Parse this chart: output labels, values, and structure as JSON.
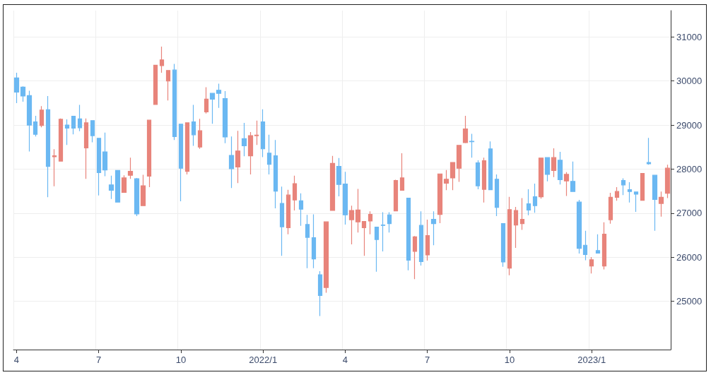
{
  "chart_data": {
    "type": "candlestick",
    "categories": [
      "4",
      null,
      null,
      null,
      null,
      null,
      null,
      null,
      null,
      null,
      null,
      null,
      null,
      "7",
      null,
      null,
      null,
      null,
      null,
      null,
      null,
      null,
      null,
      null,
      null,
      null,
      "10",
      null,
      null,
      null,
      null,
      null,
      null,
      null,
      null,
      null,
      null,
      null,
      null,
      "2022/1",
      null,
      null,
      null,
      null,
      null,
      null,
      null,
      null,
      null,
      null,
      null,
      null,
      "4",
      null,
      null,
      null,
      null,
      null,
      null,
      null,
      null,
      null,
      null,
      null,
      null,
      "7",
      null,
      null,
      null,
      null,
      null,
      null,
      null,
      null,
      null,
      null,
      null,
      null,
      "10",
      null,
      null,
      null,
      null,
      null,
      null,
      null,
      null,
      null,
      null,
      null,
      null,
      "2023/1",
      null,
      null,
      null,
      null,
      null,
      null,
      null,
      null,
      null,
      null,
      null,
      null
    ],
    "ohlc": [
      [
        30070,
        30190,
        29500,
        29750
      ],
      [
        29860,
        29880,
        29530,
        29660
      ],
      [
        29670,
        29780,
        28400,
        29000
      ],
      [
        29070,
        29210,
        28740,
        28790
      ],
      [
        28990,
        29430,
        28950,
        29340
      ],
      [
        29350,
        29660,
        27360,
        28060
      ],
      [
        28280,
        28450,
        27610,
        28300
      ],
      [
        28180,
        29150,
        28180,
        29130
      ],
      [
        29000,
        29130,
        28550,
        28930
      ],
      [
        29200,
        29210,
        28790,
        28930
      ],
      [
        29140,
        29460,
        28860,
        28940
      ],
      [
        28480,
        29150,
        27780,
        29050
      ],
      [
        29100,
        29100,
        28610,
        28760
      ],
      [
        28700,
        28710,
        27400,
        27920
      ],
      [
        28390,
        28830,
        27840,
        27980
      ],
      [
        27640,
        27850,
        27320,
        27520
      ],
      [
        27970,
        27980,
        27240,
        27250
      ],
      [
        27470,
        27860,
        27460,
        27800
      ],
      [
        27860,
        28260,
        27780,
        27950
      ],
      [
        27780,
        27800,
        26930,
        26980
      ],
      [
        27170,
        27870,
        27160,
        27620
      ],
      [
        27840,
        29120,
        27590,
        29110
      ],
      [
        29470,
        30370,
        29470,
        30360
      ],
      [
        30350,
        30780,
        30190,
        30480
      ],
      [
        30000,
        30250,
        29560,
        30240
      ],
      [
        30250,
        30390,
        28660,
        28740
      ],
      [
        29020,
        29030,
        27270,
        28020
      ],
      [
        27950,
        29060,
        27880,
        29050
      ],
      [
        29070,
        29460,
        28530,
        28780
      ],
      [
        28500,
        29140,
        28460,
        28870
      ],
      [
        29300,
        29860,
        29260,
        29590
      ],
      [
        29720,
        29730,
        29030,
        29590
      ],
      [
        29790,
        29940,
        29390,
        29720
      ],
      [
        29600,
        29770,
        28590,
        28730
      ],
      [
        28310,
        28740,
        27570,
        28010
      ],
      [
        28050,
        28870,
        27680,
        28410
      ],
      [
        28690,
        29050,
        28290,
        28530
      ],
      [
        28300,
        28840,
        27880,
        28760
      ],
      [
        28760,
        29100,
        28550,
        28770
      ],
      [
        29070,
        29360,
        28270,
        28460
      ],
      [
        28360,
        28780,
        27880,
        28110
      ],
      [
        28300,
        28660,
        27110,
        27500
      ],
      [
        27220,
        27600,
        26030,
        26690
      ],
      [
        26670,
        27530,
        26520,
        27410
      ],
      [
        27300,
        27850,
        27060,
        27670
      ],
      [
        27280,
        27450,
        26710,
        27090
      ],
      [
        26740,
        26960,
        25750,
        26450
      ],
      [
        26440,
        26970,
        25750,
        25960
      ],
      [
        25600,
        25680,
        24660,
        25130
      ],
      [
        25310,
        26810,
        25190,
        26800
      ],
      [
        27060,
        28300,
        27060,
        28130
      ],
      [
        28060,
        28250,
        27380,
        27650
      ],
      [
        27660,
        27940,
        26740,
        26960
      ],
      [
        26850,
        27170,
        26290,
        27060
      ],
      [
        26800,
        27550,
        26560,
        27070
      ],
      [
        26670,
        26820,
        26030,
        26810
      ],
      [
        26820,
        27040,
        26520,
        26970
      ],
      [
        26680,
        26690,
        25670,
        26400
      ],
      [
        26730,
        27020,
        26130,
        26720
      ],
      [
        26960,
        27020,
        26560,
        26760
      ],
      [
        27050,
        27760,
        27040,
        27740
      ],
      [
        27520,
        28360,
        27510,
        27800
      ],
      [
        27340,
        27350,
        25700,
        25930
      ],
      [
        26130,
        26480,
        25500,
        26460
      ],
      [
        26720,
        27040,
        25810,
        25900
      ],
      [
        26050,
        26850,
        25920,
        26490
      ],
      [
        26860,
        27040,
        26270,
        26760
      ],
      [
        26970,
        27900,
        26770,
        27890
      ],
      [
        27680,
        27980,
        27520,
        27770
      ],
      [
        27800,
        28160,
        27520,
        28150
      ],
      [
        28020,
        28550,
        27710,
        28540
      ],
      [
        28600,
        29210,
        28590,
        28910
      ],
      [
        28630,
        28800,
        28260,
        28620
      ],
      [
        28140,
        28200,
        27540,
        27620
      ],
      [
        27540,
        28260,
        27240,
        28190
      ],
      [
        28460,
        28630,
        27520,
        27530
      ],
      [
        27770,
        27880,
        26930,
        27130
      ],
      [
        26760,
        26770,
        25780,
        25890
      ],
      [
        25750,
        27370,
        25590,
        27080
      ],
      [
        26730,
        27140,
        26210,
        27060
      ],
      [
        26760,
        27340,
        26620,
        26860
      ],
      [
        27210,
        27540,
        26950,
        27070
      ],
      [
        27370,
        27670,
        27010,
        27170
      ],
      [
        27370,
        28260,
        27330,
        28250
      ],
      [
        28260,
        28270,
        27720,
        27880
      ],
      [
        27970,
        28470,
        27820,
        28260
      ],
      [
        28200,
        28390,
        27650,
        27760
      ],
      [
        27730,
        27930,
        27390,
        27880
      ],
      [
        27720,
        28170,
        27480,
        27490
      ],
      [
        27250,
        27300,
        26080,
        26200
      ],
      [
        26270,
        26600,
        25930,
        26060
      ],
      [
        25800,
        26000,
        25630,
        25940
      ],
      [
        26150,
        26520,
        26080,
        26090
      ],
      [
        25800,
        26790,
        25720,
        26520
      ],
      [
        26850,
        27460,
        26760,
        27360
      ],
      [
        27360,
        27590,
        27280,
        27490
      ],
      [
        27740,
        27790,
        27410,
        27640
      ],
      [
        27530,
        27700,
        27240,
        27490
      ],
      [
        27480,
        27490,
        27030,
        27430
      ],
      [
        27290,
        27910,
        27290,
        27900
      ],
      [
        28150,
        28710,
        28100,
        28120
      ],
      [
        27860,
        27870,
        26600,
        27310
      ],
      [
        27220,
        27490,
        26920,
        27360
      ],
      [
        27450,
        28100,
        27340,
        28020
      ]
    ],
    "colors": [
      "#6bb8f2",
      "#6bb8f2",
      "#6bb8f2",
      "#6bb8f2",
      "#e8847b",
      "#6bb8f2",
      "#e8847b",
      "#e8847b",
      "#6bb8f2",
      "#6bb8f2",
      "#6bb8f2",
      "#e8847b",
      "#6bb8f2",
      "#6bb8f2",
      "#6bb8f2",
      "#6bb8f2",
      "#6bb8f2",
      "#e8847b",
      "#e8847b",
      "#6bb8f2",
      "#e8847b",
      "#e8847b",
      "#e8847b",
      "#e8847b",
      "#e8847b",
      "#6bb8f2",
      "#6bb8f2",
      "#e8847b",
      "#6bb8f2",
      "#e8847b",
      "#e8847b",
      "#6bb8f2",
      "#6bb8f2",
      "#6bb8f2",
      "#6bb8f2",
      "#e8847b",
      "#6bb8f2",
      "#e8847b",
      "#e8847b",
      "#6bb8f2",
      "#6bb8f2",
      "#6bb8f2",
      "#6bb8f2",
      "#e8847b",
      "#e8847b",
      "#6bb8f2",
      "#6bb8f2",
      "#6bb8f2",
      "#6bb8f2",
      "#e8847b",
      "#e8847b",
      "#6bb8f2",
      "#6bb8f2",
      "#e8847b",
      "#e8847b",
      "#e8847b",
      "#e8847b",
      "#6bb8f2",
      "#6bb8f2",
      "#6bb8f2",
      "#e8847b",
      "#e8847b",
      "#6bb8f2",
      "#e8847b",
      "#6bb8f2",
      "#e8847b",
      "#6bb8f2",
      "#e8847b",
      "#e8847b",
      "#e8847b",
      "#e8847b",
      "#e8847b",
      "#6bb8f2",
      "#6bb8f2",
      "#e8847b",
      "#6bb8f2",
      "#6bb8f2",
      "#6bb8f2",
      "#e8847b",
      "#e8847b",
      "#e8847b",
      "#6bb8f2",
      "#6bb8f2",
      "#e8847b",
      "#6bb8f2",
      "#e8847b",
      "#6bb8f2",
      "#e8847b",
      "#6bb8f2",
      "#6bb8f2",
      "#6bb8f2",
      "#e8847b",
      "#6bb8f2",
      "#e8847b",
      "#e8847b",
      "#e8847b",
      "#6bb8f2",
      "#6bb8f2",
      "#6bb8f2",
      "#e8847b",
      "#6bb8f2",
      "#6bb8f2",
      "#e8847b",
      "#e8847b"
    ],
    "ylim": [
      23900,
      31600
    ],
    "yticks": [
      25000,
      26000,
      27000,
      28000,
      29000,
      30000,
      31000
    ],
    "grid": true
  }
}
